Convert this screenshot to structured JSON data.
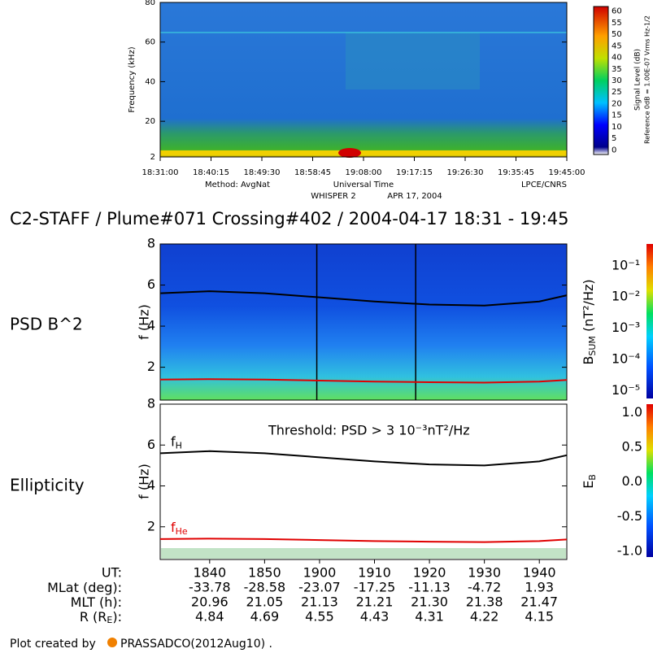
{
  "chart_data": [
    {
      "type": "spectrogram",
      "ylabel": "Frequency (kHz)",
      "xlabel": "Universal Time",
      "ylim": [
        2,
        80
      ],
      "yticks": [
        2,
        20,
        40,
        60,
        80
      ],
      "xlim": [
        1111,
        1185
      ],
      "xticks": [
        {
          "value": 1111,
          "label": "18:31:00"
        },
        {
          "value": 1120.25,
          "label": "18:40:15"
        },
        {
          "value": 1129.5,
          "label": "18:49:30"
        },
        {
          "value": 1138.75,
          "label": "18:58:45"
        },
        {
          "value": 1148,
          "label": "19:08:00"
        },
        {
          "value": 1157.25,
          "label": "19:17:15"
        },
        {
          "value": 1166.5,
          "label": "19:26:30"
        },
        {
          "value": 1175.75,
          "label": "19:35:45"
        },
        {
          "value": 1185,
          "label": "19:45:00"
        }
      ],
      "method": "Method: AvgNat",
      "instrument": "WHISPER 2",
      "date": "APR 17, 2004",
      "credit": "LPCE/CNRS",
      "colorbar_label": "Signal Level (dB)",
      "colorbar_reference": "Reference 0dB = 1.00E-07 Vrms Hz-1/2",
      "colorbar_lim": [
        -2,
        62
      ],
      "colorbar_ticks": [
        0,
        5,
        10,
        15,
        20,
        25,
        30,
        35,
        40,
        45,
        50,
        55,
        60
      ]
    },
    {
      "type": "spectrogram",
      "title": "C2-STAFF /  Plume#071  Crossing#402 / 2004-04-17 18:31 - 19:45",
      "panel_label": "PSD B^2",
      "ylabel": "f (Hz)",
      "ylim": [
        0.4,
        8
      ],
      "yticks": [
        2,
        4,
        6,
        8
      ],
      "xlim": [
        1111,
        1185
      ],
      "markers_x": [
        1139.5,
        1157.5
      ],
      "colorbar_label": {
        "main": "B",
        "sub": "SUM",
        "rest": " (nT²/Hz)"
      },
      "colorbar_log": true,
      "colorbar_lim": [
        0.5,
        5.6e-06
      ],
      "colorbar_ticks": [
        {
          "value": 0.1,
          "label": "10⁻¹"
        },
        {
          "value": 0.01,
          "label": "10⁻²"
        },
        {
          "value": 0.001,
          "label": "10⁻³"
        },
        {
          "value": 0.0001,
          "label": "10⁻⁴"
        },
        {
          "value": 1e-05,
          "label": "10⁻⁵"
        }
      ],
      "series": [
        {
          "color": "#000000",
          "x": [
            1111,
            1120,
            1130,
            1140,
            1150,
            1160,
            1170,
            1180,
            1185
          ],
          "values": [
            5.6,
            5.7,
            5.6,
            5.4,
            5.2,
            5.05,
            5.0,
            5.2,
            5.5
          ]
        },
        {
          "color": "#e00000",
          "x": [
            1111,
            1120,
            1130,
            1140,
            1150,
            1160,
            1170,
            1180,
            1185
          ],
          "values": [
            1.4,
            1.42,
            1.4,
            1.35,
            1.3,
            1.27,
            1.25,
            1.3,
            1.38
          ]
        }
      ]
    },
    {
      "type": "ellipticity",
      "panel_label": "Ellipticity",
      "ylabel": "f (Hz)",
      "ylim": [
        0.4,
        8
      ],
      "yticks": [
        2,
        4,
        6,
        8
      ],
      "xlim": [
        1111,
        1185
      ],
      "annotation": "Threshold: PSD > 3 10⁻³nT²/Hz",
      "xticks": [
        {
          "value": 1120,
          "label": "1840"
        },
        {
          "value": 1130,
          "label": "1850"
        },
        {
          "value": 1140,
          "label": "1900"
        },
        {
          "value": 1150,
          "label": "1910"
        },
        {
          "value": 1160,
          "label": "1920"
        },
        {
          "value": 1170,
          "label": "1930"
        },
        {
          "value": 1180,
          "label": "1940"
        }
      ],
      "colorbar_label": {
        "main": "E",
        "sub": "B"
      },
      "colorbar_lim": [
        1.12,
        -1.08
      ],
      "colorbar_ticks": [
        {
          "value": 1,
          "label": "1.0"
        },
        {
          "value": 0.5,
          "label": "0.5"
        },
        {
          "value": 0,
          "label": "0.0"
        },
        {
          "value": -0.5,
          "label": "-0.5"
        },
        {
          "value": -1,
          "label": "-1.0"
        }
      ],
      "series": [
        {
          "name": "f",
          "name_sub": "H",
          "color": "#000000",
          "x": [
            1111,
            1120,
            1130,
            1140,
            1150,
            1160,
            1170,
            1180,
            1185
          ],
          "values": [
            5.6,
            5.7,
            5.6,
            5.4,
            5.2,
            5.05,
            5.0,
            5.2,
            5.5
          ]
        },
        {
          "name": "f",
          "name_sub": "He",
          "color": "#e00000",
          "x": [
            1111,
            1120,
            1130,
            1140,
            1150,
            1160,
            1170,
            1180,
            1185
          ],
          "values": [
            1.4,
            1.42,
            1.4,
            1.35,
            1.3,
            1.27,
            1.25,
            1.3,
            1.38
          ]
        }
      ],
      "ephemeris": {
        "ut_label": "UT:",
        "rows": [
          {
            "label": "MLat (deg):",
            "values": [
              "-33.78",
              "-28.58",
              "-23.07",
              "-17.25",
              "-11.13",
              "-4.72",
              "1.93"
            ]
          },
          {
            "label": "MLT (h):",
            "values": [
              "20.96",
              "21.05",
              "21.13",
              "21.21",
              "21.30",
              "21.38",
              "21.47"
            ]
          },
          {
            "label": "R (R",
            "label_sub": "E",
            "label_end": "):",
            "values": [
              "4.84",
              "4.69",
              "4.55",
              "4.43",
              "4.31",
              "4.22",
              "4.15"
            ]
          }
        ]
      }
    }
  ],
  "footer": {
    "text": "Plot created by",
    "author": "PRASSADCO(2012Aug10) ."
  }
}
